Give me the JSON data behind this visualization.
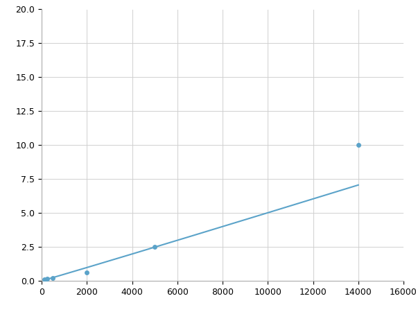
{
  "x": [
    125,
    250,
    500,
    2000,
    5000,
    14000
  ],
  "y": [
    0.08,
    0.13,
    0.18,
    0.6,
    2.5,
    10.0
  ],
  "line_color": "#5ba3c9",
  "marker_color": "#5ba3c9",
  "marker_size": 5,
  "xlim": [
    0,
    16000
  ],
  "ylim": [
    0,
    20.0
  ],
  "xticks": [
    0,
    2000,
    4000,
    6000,
    8000,
    10000,
    12000,
    14000,
    16000
  ],
  "yticks": [
    0.0,
    2.5,
    5.0,
    7.5,
    10.0,
    12.5,
    15.0,
    17.5,
    20.0
  ],
  "grid_color": "#d0d0d0",
  "bg_color": "#ffffff",
  "fig_bg_color": "#ffffff",
  "linewidth": 1.5,
  "tick_labelsize": 9
}
